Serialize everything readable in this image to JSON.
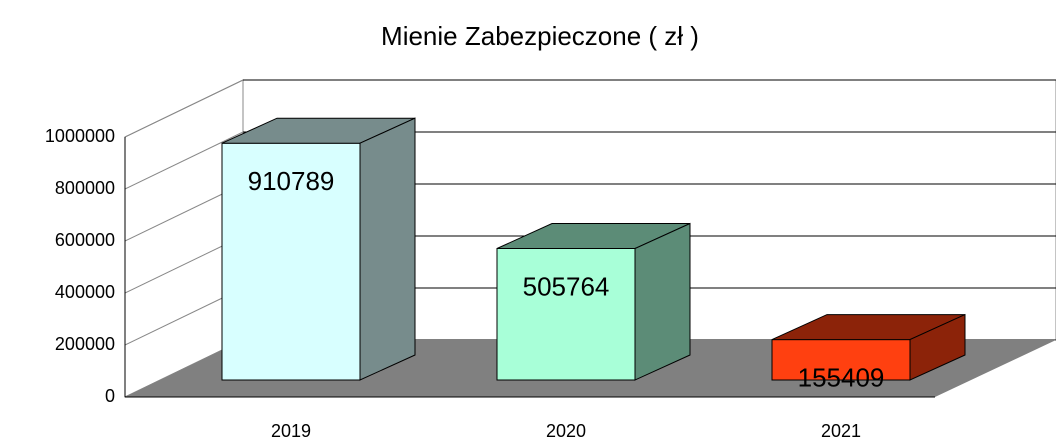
{
  "chart_data": {
    "type": "bar3d",
    "title": "Mienie Zabezpieczone ( zł )",
    "categories": [
      "2019",
      "2020",
      "2021"
    ],
    "values": [
      910789,
      505764,
      155409
    ],
    "colors": [
      "#d8ffff",
      "#a8ffd8",
      "#ff4010"
    ],
    "ylim": [
      0,
      1000000
    ],
    "yticks": [
      0,
      200000,
      400000,
      600000,
      800000,
      1000000
    ],
    "grid": true
  }
}
